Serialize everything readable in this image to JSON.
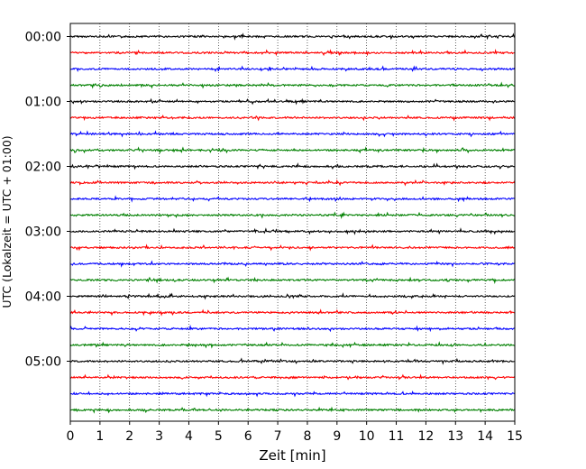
{
  "chart_data": {
    "type": "line",
    "title": "",
    "xlabel": "Zeit  [min]",
    "ylabel": "UTC (Lokalzeit = UTC + 01:00)",
    "xlim": [
      0,
      15
    ],
    "x_ticks": [
      "0",
      "1",
      "2",
      "3",
      "4",
      "5",
      "6",
      "7",
      "8",
      "9",
      "10",
      "11",
      "12",
      "13",
      "14",
      "15"
    ],
    "y_ticks": [
      "00:00",
      "01:00",
      "02:00",
      "03:00",
      "04:00",
      "05:00"
    ],
    "grid": "vertical dotted at each minute",
    "trace_interval_min": 15,
    "trace_count": 24,
    "trace_colors": [
      "#000000",
      "#ff0000",
      "#0000ff",
      "#008000"
    ],
    "series": [
      {
        "trace_start": "00:00"
      },
      {
        "trace_start": "00:15"
      },
      {
        "trace_start": "00:30"
      },
      {
        "trace_start": "00:45"
      },
      {
        "trace_start": "01:00"
      },
      {
        "trace_start": "01:15"
      },
      {
        "trace_start": "01:30"
      },
      {
        "trace_start": "01:45"
      },
      {
        "trace_start": "02:00"
      },
      {
        "trace_start": "02:15"
      },
      {
        "trace_start": "02:30"
      },
      {
        "trace_start": "02:45"
      },
      {
        "trace_start": "03:00"
      },
      {
        "trace_start": "03:15"
      },
      {
        "trace_start": "03:30"
      },
      {
        "trace_start": "03:45"
      },
      {
        "trace_start": "04:00"
      },
      {
        "trace_start": "04:15"
      },
      {
        "trace_start": "04:30"
      },
      {
        "trace_start": "04:45"
      },
      {
        "trace_start": "05:00"
      },
      {
        "trace_start": "05:15"
      },
      {
        "trace_start": "05:30"
      },
      {
        "trace_start": "05:45"
      }
    ]
  }
}
